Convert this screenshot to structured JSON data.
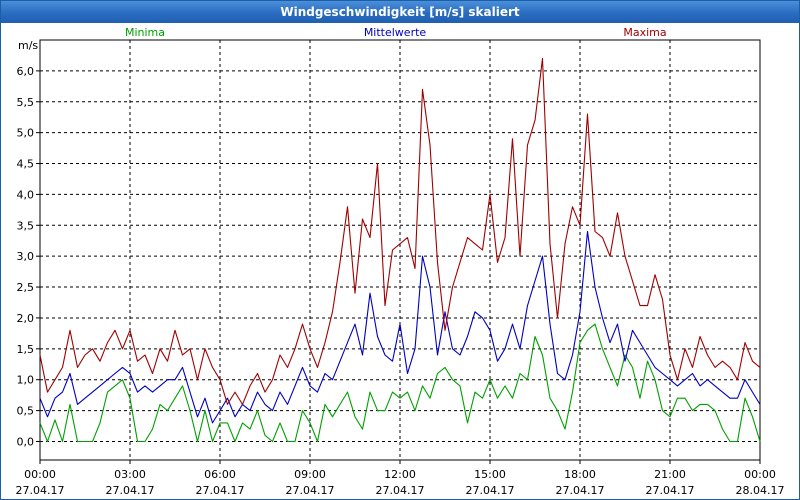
{
  "window": {
    "title": "Windgeschwindigkeit [m/s] skaliert"
  },
  "chart_data": {
    "type": "line",
    "title": "Windgeschwindigkeit [m/s] skaliert",
    "ylabel": "m/s",
    "ylim": [
      -0.3,
      6.5
    ],
    "y_ticks": [
      0.0,
      0.5,
      1.0,
      1.5,
      2.0,
      2.5,
      3.0,
      3.5,
      4.0,
      4.5,
      5.0,
      5.5,
      6.0
    ],
    "y_tick_labels": [
      "0,0",
      "0,5",
      "1,0",
      "1,5",
      "2,0",
      "2,5",
      "3,0",
      "3,5",
      "4,0",
      "4,5",
      "5,0",
      "5,5",
      "6,0"
    ],
    "x_tick_labels": [
      {
        "time": "00:00",
        "date": "27.04.17"
      },
      {
        "time": "03:00",
        "date": "27.04.17"
      },
      {
        "time": "06:00",
        "date": "27.04.17"
      },
      {
        "time": "09:00",
        "date": "27.04.17"
      },
      {
        "time": "12:00",
        "date": "27.04.17"
      },
      {
        "time": "15:00",
        "date": "27.04.17"
      },
      {
        "time": "18:00",
        "date": "27.04.17"
      },
      {
        "time": "21:00",
        "date": "27.04.17"
      },
      {
        "time": "00:00",
        "date": "28.04.17"
      }
    ],
    "xlim_hours": [
      0,
      24
    ],
    "grid": true,
    "legend_placement": "top",
    "series": [
      {
        "name": "Minima",
        "color": "#00a000",
        "points": [
          [
            0.0,
            0.3
          ],
          [
            0.25,
            0.0
          ],
          [
            0.5,
            0.35
          ],
          [
            0.75,
            0.0
          ],
          [
            1.0,
            0.6
          ],
          [
            1.25,
            0.0
          ],
          [
            1.5,
            0.0
          ],
          [
            1.75,
            0.0
          ],
          [
            2.0,
            0.3
          ],
          [
            2.25,
            0.8
          ],
          [
            2.5,
            0.9
          ],
          [
            2.75,
            1.0
          ],
          [
            3.0,
            0.7
          ],
          [
            3.25,
            0.0
          ],
          [
            3.5,
            0.0
          ],
          [
            3.75,
            0.2
          ],
          [
            4.0,
            0.6
          ],
          [
            4.25,
            0.5
          ],
          [
            4.5,
            0.7
          ],
          [
            4.75,
            0.9
          ],
          [
            5.0,
            0.5
          ],
          [
            5.25,
            0.0
          ],
          [
            5.5,
            0.5
          ],
          [
            5.75,
            0.0
          ],
          [
            6.0,
            0.3
          ],
          [
            6.25,
            0.3
          ],
          [
            6.5,
            0.0
          ],
          [
            6.75,
            0.3
          ],
          [
            7.0,
            0.2
          ],
          [
            7.25,
            0.5
          ],
          [
            7.5,
            0.1
          ],
          [
            7.75,
            0.0
          ],
          [
            8.0,
            0.3
          ],
          [
            8.25,
            0.0
          ],
          [
            8.5,
            0.0
          ],
          [
            8.75,
            0.5
          ],
          [
            9.0,
            0.3
          ],
          [
            9.25,
            0.0
          ],
          [
            9.5,
            0.6
          ],
          [
            9.75,
            0.4
          ],
          [
            10.0,
            0.6
          ],
          [
            10.25,
            0.8
          ],
          [
            10.5,
            0.4
          ],
          [
            10.75,
            0.2
          ],
          [
            11.0,
            0.8
          ],
          [
            11.25,
            0.5
          ],
          [
            11.5,
            0.5
          ],
          [
            11.75,
            0.8
          ],
          [
            12.0,
            0.7
          ],
          [
            12.25,
            0.8
          ],
          [
            12.5,
            0.5
          ],
          [
            12.75,
            0.9
          ],
          [
            13.0,
            0.7
          ],
          [
            13.25,
            1.1
          ],
          [
            13.5,
            1.2
          ],
          [
            13.75,
            1.0
          ],
          [
            14.0,
            0.9
          ],
          [
            14.25,
            0.3
          ],
          [
            14.5,
            0.8
          ],
          [
            14.75,
            0.7
          ],
          [
            15.0,
            1.0
          ],
          [
            15.25,
            0.7
          ],
          [
            15.5,
            0.9
          ],
          [
            15.75,
            0.7
          ],
          [
            16.0,
            1.1
          ],
          [
            16.25,
            1.0
          ],
          [
            16.5,
            1.7
          ],
          [
            16.75,
            1.4
          ],
          [
            17.0,
            0.7
          ],
          [
            17.25,
            0.5
          ],
          [
            17.5,
            0.2
          ],
          [
            17.75,
            0.8
          ],
          [
            18.0,
            1.6
          ],
          [
            18.25,
            1.8
          ],
          [
            18.5,
            1.9
          ],
          [
            18.75,
            1.5
          ],
          [
            19.0,
            1.2
          ],
          [
            19.25,
            0.9
          ],
          [
            19.5,
            1.4
          ],
          [
            19.75,
            1.2
          ],
          [
            20.0,
            0.7
          ],
          [
            20.25,
            1.3
          ],
          [
            20.5,
            1.0
          ],
          [
            20.75,
            0.5
          ],
          [
            21.0,
            0.4
          ],
          [
            21.25,
            0.7
          ],
          [
            21.5,
            0.7
          ],
          [
            21.75,
            0.5
          ],
          [
            22.0,
            0.6
          ],
          [
            22.25,
            0.6
          ],
          [
            22.5,
            0.5
          ],
          [
            22.75,
            0.2
          ],
          [
            23.0,
            0.0
          ],
          [
            23.25,
            0.0
          ],
          [
            23.5,
            0.7
          ],
          [
            23.75,
            0.4
          ],
          [
            24.0,
            0.0
          ]
        ]
      },
      {
        "name": "Mittelwerte",
        "color": "#0000c0",
        "points": [
          [
            0.0,
            0.7
          ],
          [
            0.25,
            0.4
          ],
          [
            0.5,
            0.7
          ],
          [
            0.75,
            0.8
          ],
          [
            1.0,
            1.1
          ],
          [
            1.25,
            0.6
          ],
          [
            1.5,
            0.7
          ],
          [
            1.75,
            0.8
          ],
          [
            2.0,
            0.9
          ],
          [
            2.25,
            1.0
          ],
          [
            2.5,
            1.1
          ],
          [
            2.75,
            1.2
          ],
          [
            3.0,
            1.1
          ],
          [
            3.25,
            0.8
          ],
          [
            3.5,
            0.9
          ],
          [
            3.75,
            0.8
          ],
          [
            4.0,
            0.9
          ],
          [
            4.25,
            1.0
          ],
          [
            4.5,
            1.0
          ],
          [
            4.75,
            1.2
          ],
          [
            5.0,
            0.8
          ],
          [
            5.25,
            0.4
          ],
          [
            5.5,
            0.7
          ],
          [
            5.75,
            0.3
          ],
          [
            6.0,
            0.5
          ],
          [
            6.25,
            0.7
          ],
          [
            6.5,
            0.4
          ],
          [
            6.75,
            0.6
          ],
          [
            7.0,
            0.5
          ],
          [
            7.25,
            0.8
          ],
          [
            7.5,
            0.6
          ],
          [
            7.75,
            0.5
          ],
          [
            8.0,
            0.8
          ],
          [
            8.25,
            0.6
          ],
          [
            8.5,
            0.9
          ],
          [
            8.75,
            1.2
          ],
          [
            9.0,
            0.9
          ],
          [
            9.25,
            0.8
          ],
          [
            9.5,
            1.1
          ],
          [
            9.75,
            1.0
          ],
          [
            10.0,
            1.3
          ],
          [
            10.25,
            1.6
          ],
          [
            10.5,
            1.9
          ],
          [
            10.75,
            1.4
          ],
          [
            11.0,
            2.4
          ],
          [
            11.25,
            1.7
          ],
          [
            11.5,
            1.4
          ],
          [
            11.75,
            1.3
          ],
          [
            12.0,
            1.9
          ],
          [
            12.25,
            1.1
          ],
          [
            12.5,
            1.5
          ],
          [
            12.75,
            3.0
          ],
          [
            13.0,
            2.5
          ],
          [
            13.25,
            1.4
          ],
          [
            13.5,
            2.1
          ],
          [
            13.75,
            1.5
          ],
          [
            14.0,
            1.4
          ],
          [
            14.25,
            1.7
          ],
          [
            14.5,
            2.1
          ],
          [
            14.75,
            2.0
          ],
          [
            15.0,
            1.8
          ],
          [
            15.25,
            1.3
          ],
          [
            15.5,
            1.5
          ],
          [
            15.75,
            1.9
          ],
          [
            16.0,
            1.5
          ],
          [
            16.25,
            2.2
          ],
          [
            16.5,
            2.6
          ],
          [
            16.75,
            3.0
          ],
          [
            17.0,
            1.9
          ],
          [
            17.25,
            1.1
          ],
          [
            17.5,
            1.0
          ],
          [
            17.75,
            1.4
          ],
          [
            18.0,
            2.1
          ],
          [
            18.25,
            3.4
          ],
          [
            18.5,
            2.5
          ],
          [
            18.75,
            2.0
          ],
          [
            19.0,
            1.6
          ],
          [
            19.25,
            1.9
          ],
          [
            19.5,
            1.3
          ],
          [
            19.75,
            1.8
          ],
          [
            20.0,
            1.6
          ],
          [
            20.25,
            1.4
          ],
          [
            20.5,
            1.2
          ],
          [
            20.75,
            1.1
          ],
          [
            21.0,
            1.0
          ],
          [
            21.25,
            0.9
          ],
          [
            21.5,
            1.0
          ],
          [
            21.75,
            1.1
          ],
          [
            22.0,
            0.9
          ],
          [
            22.25,
            1.0
          ],
          [
            22.5,
            0.9
          ],
          [
            22.75,
            0.8
          ],
          [
            23.0,
            0.7
          ],
          [
            23.25,
            0.7
          ],
          [
            23.5,
            1.0
          ],
          [
            23.75,
            0.8
          ],
          [
            24.0,
            0.6
          ]
        ]
      },
      {
        "name": "Maxima",
        "color": "#a00000",
        "points": [
          [
            0.0,
            1.4
          ],
          [
            0.25,
            0.8
          ],
          [
            0.5,
            1.0
          ],
          [
            0.75,
            1.2
          ],
          [
            1.0,
            1.8
          ],
          [
            1.25,
            1.2
          ],
          [
            1.5,
            1.4
          ],
          [
            1.75,
            1.5
          ],
          [
            2.0,
            1.3
          ],
          [
            2.25,
            1.6
          ],
          [
            2.5,
            1.8
          ],
          [
            2.75,
            1.5
          ],
          [
            3.0,
            1.8
          ],
          [
            3.25,
            1.3
          ],
          [
            3.5,
            1.4
          ],
          [
            3.75,
            1.1
          ],
          [
            4.0,
            1.5
          ],
          [
            4.25,
            1.3
          ],
          [
            4.5,
            1.8
          ],
          [
            4.75,
            1.4
          ],
          [
            5.0,
            1.5
          ],
          [
            5.25,
            1.0
          ],
          [
            5.5,
            1.5
          ],
          [
            5.75,
            1.2
          ],
          [
            6.0,
            1.0
          ],
          [
            6.25,
            0.6
          ],
          [
            6.5,
            0.8
          ],
          [
            6.75,
            0.6
          ],
          [
            7.0,
            0.9
          ],
          [
            7.25,
            1.1
          ],
          [
            7.5,
            0.8
          ],
          [
            7.75,
            1.0
          ],
          [
            8.0,
            1.4
          ],
          [
            8.25,
            1.2
          ],
          [
            8.5,
            1.5
          ],
          [
            8.75,
            1.9
          ],
          [
            9.0,
            1.5
          ],
          [
            9.25,
            1.2
          ],
          [
            9.5,
            1.6
          ],
          [
            9.75,
            2.1
          ],
          [
            10.0,
            2.9
          ],
          [
            10.25,
            3.8
          ],
          [
            10.5,
            2.4
          ],
          [
            10.75,
            3.6
          ],
          [
            11.0,
            3.3
          ],
          [
            11.25,
            4.5
          ],
          [
            11.5,
            2.2
          ],
          [
            11.75,
            3.1
          ],
          [
            12.0,
            3.2
          ],
          [
            12.25,
            3.3
          ],
          [
            12.5,
            2.8
          ],
          [
            12.75,
            5.7
          ],
          [
            13.0,
            4.8
          ],
          [
            13.25,
            2.9
          ],
          [
            13.5,
            1.8
          ],
          [
            13.75,
            2.5
          ],
          [
            14.0,
            2.9
          ],
          [
            14.25,
            3.3
          ],
          [
            14.5,
            3.2
          ],
          [
            14.75,
            3.1
          ],
          [
            15.0,
            4.0
          ],
          [
            15.25,
            2.9
          ],
          [
            15.5,
            3.3
          ],
          [
            15.75,
            4.9
          ],
          [
            16.0,
            3.0
          ],
          [
            16.25,
            4.8
          ],
          [
            16.5,
            5.2
          ],
          [
            16.75,
            6.2
          ],
          [
            17.0,
            3.2
          ],
          [
            17.25,
            2.0
          ],
          [
            17.5,
            3.2
          ],
          [
            17.75,
            3.8
          ],
          [
            18.0,
            3.5
          ],
          [
            18.25,
            5.3
          ],
          [
            18.5,
            3.4
          ],
          [
            18.75,
            3.3
          ],
          [
            19.0,
            3.0
          ],
          [
            19.25,
            3.7
          ],
          [
            19.5,
            3.0
          ],
          [
            19.75,
            2.6
          ],
          [
            20.0,
            2.2
          ],
          [
            20.25,
            2.2
          ],
          [
            20.5,
            2.7
          ],
          [
            20.75,
            2.3
          ],
          [
            21.0,
            1.4
          ],
          [
            21.25,
            1.0
          ],
          [
            21.5,
            1.5
          ],
          [
            21.75,
            1.2
          ],
          [
            22.0,
            1.7
          ],
          [
            22.25,
            1.4
          ],
          [
            22.5,
            1.2
          ],
          [
            22.75,
            1.3
          ],
          [
            23.0,
            1.2
          ],
          [
            23.25,
            1.0
          ],
          [
            23.5,
            1.6
          ],
          [
            23.75,
            1.3
          ],
          [
            24.0,
            1.2
          ]
        ]
      }
    ]
  }
}
